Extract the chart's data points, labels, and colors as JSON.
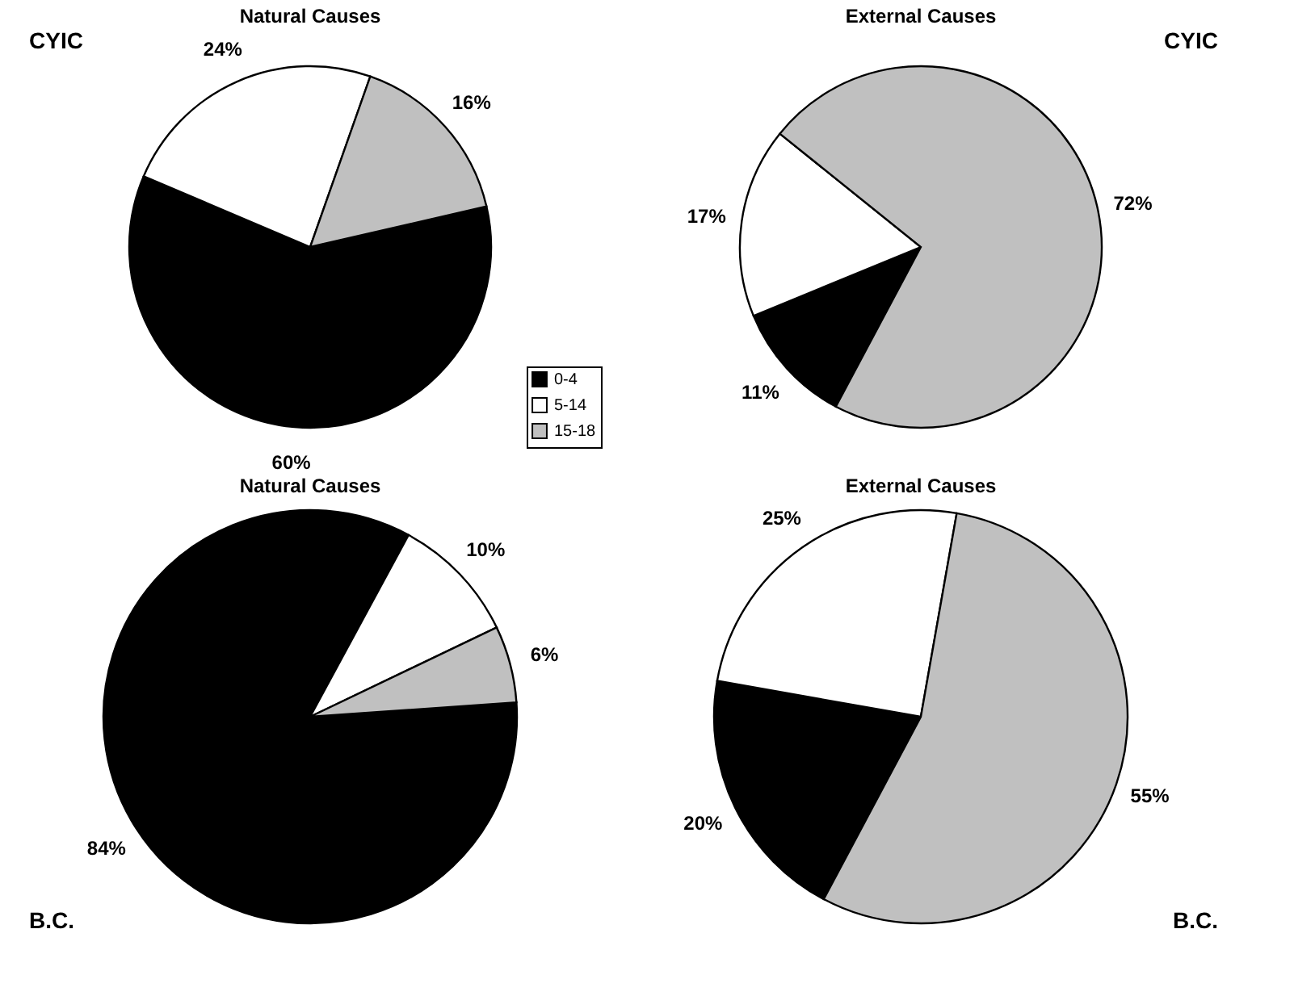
{
  "chart_data": [
    {
      "type": "pie",
      "title": "Natural Causes",
      "categories": [
        "0-4",
        "5-14",
        "15-18"
      ],
      "values": [
        60,
        24,
        16
      ],
      "value_labels": [
        "60%",
        "24%",
        "16%"
      ],
      "colors": [
        "#000000",
        "#ffffff",
        "#c0c0c0"
      ],
      "legend": "bottom right",
      "annotations": [
        "CYIC"
      ]
    },
    {
      "type": "pie",
      "title": "External Causes",
      "categories": [
        null,
        null,
        null
      ],
      "values": [
        11,
        17,
        72
      ],
      "value_labels": [
        "11%",
        "17%",
        "72%"
      ],
      "colors": [
        "#000000",
        "#ffffff",
        "#c0c0c0"
      ],
      "annotations": [
        "CYIC"
      ]
    },
    {
      "type": "pie",
      "title": "Natural Causes",
      "categories": [
        null,
        null,
        null
      ],
      "values": [
        84,
        10,
        6
      ],
      "value_labels": [
        "84%",
        "10%",
        "6%"
      ],
      "colors": [
        "#000000",
        "#ffffff",
        "#c0c0c0"
      ],
      "annotations": [
        "B.C."
      ]
    },
    {
      "type": "pie",
      "title": "External Causes",
      "categories": [
        null,
        null,
        null
      ],
      "values": [
        20,
        25,
        55
      ],
      "value_labels": [
        "20%",
        "25%",
        "55%"
      ],
      "colors": [
        "#000000",
        "#ffffff",
        "#c0c0c0"
      ],
      "annotations": [
        "B.C."
      ]
    }
  ]
}
